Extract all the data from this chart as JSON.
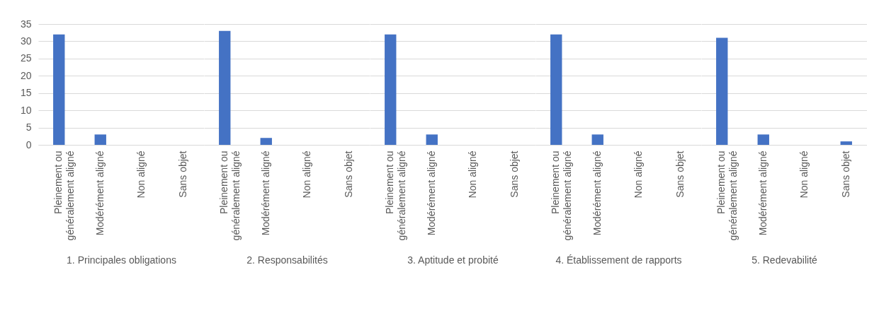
{
  "chart_data": [
    {
      "type": "bar",
      "xlabel": "1. Principales obligations",
      "categories": [
        "Pleinement ou généralement aligné",
        "Modérément aligné",
        "Non aligné",
        "Sans objet"
      ],
      "values": [
        32,
        3,
        0,
        0
      ],
      "color": "#4472c4",
      "ylim": [
        0,
        35
      ],
      "yticks": [
        0,
        5,
        10,
        15,
        20,
        25,
        30,
        35
      ],
      "grid": "y"
    },
    {
      "type": "bar",
      "xlabel": "2. Responsabilités",
      "categories": [
        "Pleinement ou généralement aligné",
        "Modérément aligné",
        "Non aligné",
        "Sans objet"
      ],
      "values": [
        33,
        2,
        0,
        0
      ],
      "color": "#4472c4",
      "ylim": [
        0,
        35
      ],
      "yticks": [
        0,
        5,
        10,
        15,
        20,
        25,
        30,
        35
      ],
      "grid": "y",
      "tick_labels": "x"
    },
    {
      "type": "bar",
      "xlabel": "3. Aptitude et probité",
      "categories": [
        "Pleinement ou généralement aligné",
        "Modérément aligné",
        "Non aligné",
        "Sans objet"
      ],
      "values": [
        32,
        3,
        0,
        0
      ],
      "color": "#4472c4",
      "ylim": [
        0,
        35
      ],
      "yticks": [
        0,
        5,
        10,
        15,
        20,
        25,
        30,
        35
      ],
      "grid": "y",
      "tick_labels": "x"
    },
    {
      "type": "bar",
      "xlabel": "4. Établissement de rapports",
      "categories": [
        "Pleinement ou généralement aligné",
        "Modérément aligné",
        "Non aligné",
        "Sans objet"
      ],
      "values": [
        32,
        3,
        0,
        0
      ],
      "color": "#4472c4",
      "ylim": [
        0,
        35
      ],
      "yticks": [
        0,
        5,
        10,
        15,
        20,
        25,
        30,
        35
      ],
      "grid": "y",
      "tick_labels": "x"
    },
    {
      "type": "bar",
      "xlabel": "5. Redevabilité",
      "categories": [
        "Pleinement ou généralement aligné",
        "Modérément aligné",
        "Non aligné",
        "Sans objet"
      ],
      "values": [
        31,
        3,
        0,
        1
      ],
      "color": "#4472c4",
      "ylim": [
        0,
        35
      ],
      "yticks": [
        0,
        5,
        10,
        15,
        20,
        25,
        30,
        35
      ],
      "grid": "y",
      "tick_labels": "x"
    }
  ]
}
